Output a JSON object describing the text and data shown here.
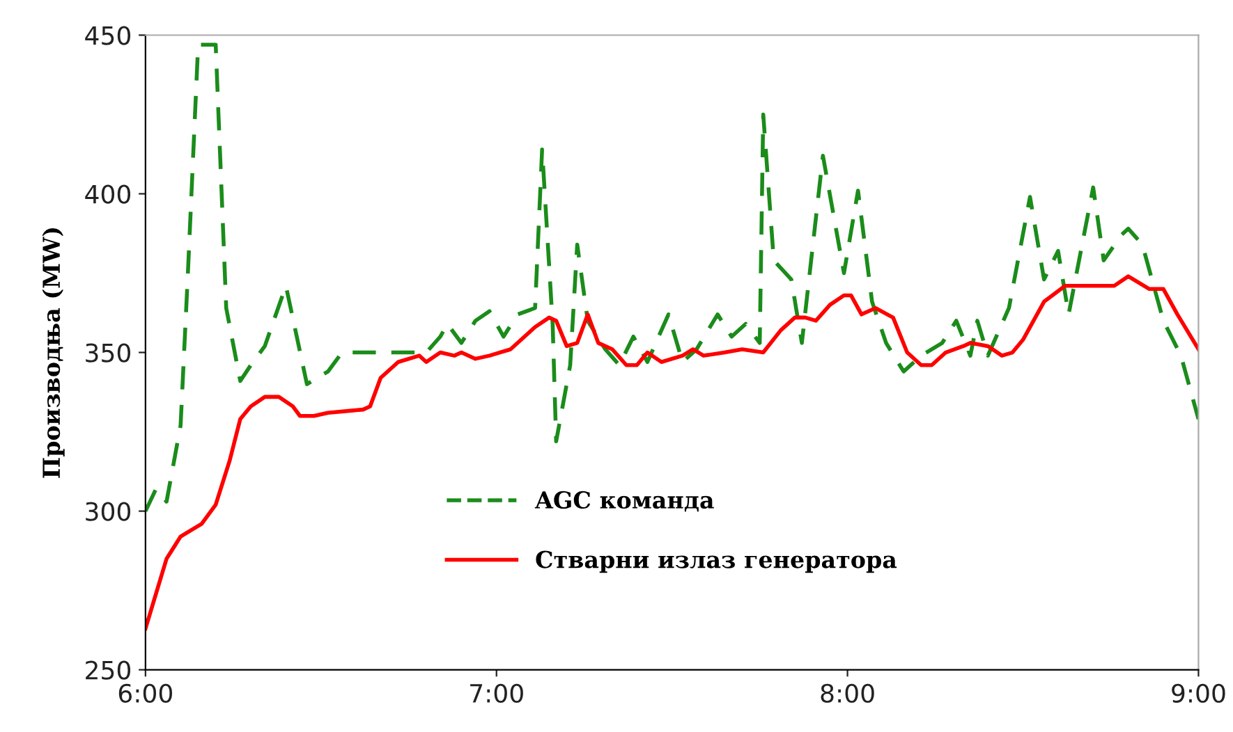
{
  "chart_data": {
    "type": "line",
    "ylabel": "Производња (MW)",
    "xlim": [
      6,
      9
    ],
    "xticks": [
      {
        "value": 6,
        "label": "6:00"
      },
      {
        "value": 7,
        "label": "7:00"
      },
      {
        "value": 8,
        "label": "8:00"
      },
      {
        "value": 9,
        "label": "9:00"
      }
    ],
    "ylim": [
      250,
      450
    ],
    "yticks": [
      250,
      300,
      350,
      400,
      450
    ],
    "grid": false,
    "legend": "bottom",
    "marker": "none",
    "series": [
      {
        "name": "AGC команда",
        "color": "#1a8c1a",
        "line_style": "dashed",
        "x": [
          6.0,
          6.03,
          6.06,
          6.1,
          6.12,
          6.15,
          6.2,
          6.23,
          6.27,
          6.3,
          6.34,
          6.4,
          6.46,
          6.52,
          6.56,
          6.74,
          6.8,
          6.84,
          6.86,
          6.9,
          6.94,
          6.98,
          7.02,
          7.06,
          7.11,
          7.13,
          7.16,
          7.17,
          7.21,
          7.23,
          7.26,
          7.31,
          7.35,
          7.39,
          7.43,
          7.49,
          7.53,
          7.57,
          7.63,
          7.67,
          7.71,
          7.75,
          7.76,
          7.79,
          7.84,
          7.87,
          7.93,
          7.99,
          8.03,
          8.07,
          8.11,
          8.16,
          8.21,
          8.27,
          8.31,
          8.35,
          8.37,
          8.4,
          8.46,
          8.52,
          8.56,
          8.6,
          8.63,
          8.7,
          8.73,
          8.78,
          8.8,
          8.84,
          8.9,
          8.95,
          9.0
        ],
        "values": [
          300,
          307,
          303,
          327,
          373,
          447,
          447,
          364,
          341,
          346,
          352,
          371,
          340,
          344,
          350,
          350,
          350,
          355,
          359,
          353,
          360,
          363,
          355,
          362,
          364,
          414,
          359,
          322,
          346,
          384,
          360,
          351,
          346,
          355,
          347,
          362,
          347,
          351,
          362,
          355,
          359,
          353,
          425,
          379,
          373,
          353,
          412,
          375,
          401,
          366,
          353,
          344,
          349,
          353,
          360,
          349,
          360,
          349,
          364,
          399,
          373,
          382,
          362,
          402,
          379,
          387,
          389,
          384,
          360,
          349,
          329
        ]
      },
      {
        "name": "Стварни излаз генератора",
        "color": "#ff0000",
        "line_style": "solid",
        "x": [
          6.0,
          6.03,
          6.06,
          6.1,
          6.16,
          6.2,
          6.24,
          6.27,
          6.3,
          6.34,
          6.38,
          6.42,
          6.44,
          6.48,
          6.52,
          6.62,
          6.64,
          6.67,
          6.72,
          6.78,
          6.8,
          6.84,
          6.88,
          6.9,
          6.94,
          6.98,
          7.04,
          7.11,
          7.15,
          7.17,
          7.2,
          7.23,
          7.26,
          7.29,
          7.33,
          7.37,
          7.4,
          7.43,
          7.47,
          7.53,
          7.56,
          7.59,
          7.65,
          7.7,
          7.76,
          7.81,
          7.85,
          7.88,
          7.91,
          7.95,
          7.99,
          8.01,
          8.04,
          8.08,
          8.13,
          8.17,
          8.21,
          8.24,
          8.28,
          8.33,
          8.35,
          8.4,
          8.44,
          8.47,
          8.5,
          8.56,
          8.62,
          8.66,
          8.76,
          8.8,
          8.86,
          8.9,
          8.94,
          9.0
        ],
        "values": [
          263,
          274,
          285,
          292,
          296,
          302,
          316,
          329,
          333,
          336,
          336,
          333,
          330,
          330,
          331,
          332,
          333,
          342,
          347,
          349,
          347,
          350,
          349,
          350,
          348,
          349,
          351,
          358,
          361,
          360,
          352,
          353,
          362,
          353,
          351,
          346,
          346,
          350,
          347,
          349,
          351,
          349,
          350,
          351,
          350,
          357,
          361,
          361,
          360,
          365,
          368,
          368,
          362,
          364,
          361,
          350,
          346,
          346,
          350,
          352,
          353,
          352,
          349,
          350,
          354,
          366,
          371,
          371,
          371,
          374,
          370,
          370,
          362,
          351
        ]
      }
    ]
  }
}
